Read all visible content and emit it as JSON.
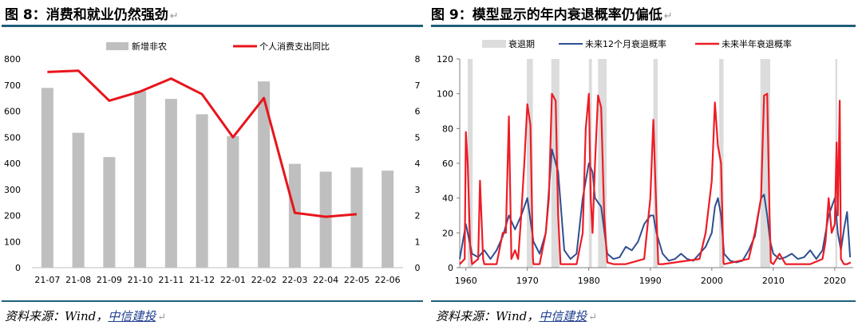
{
  "left": {
    "title": "图 8：消费和就业仍然强劲",
    "source_prefix": "资料来源：Wind，",
    "source_brand": "中信建投",
    "return_mark": "↵",
    "colors": {
      "bars": "#bfbfbf",
      "line": "#e8141b",
      "rule": "#1f5f7a"
    },
    "chart_data": {
      "type": "bar",
      "categories": [
        "21-07",
        "21-08",
        "21-09",
        "21-10",
        "21-11",
        "21-12",
        "22-01",
        "22-02",
        "22-03",
        "22-04",
        "22-05",
        "22-06"
      ],
      "series": [
        {
          "name": "新增非农",
          "type": "bar",
          "axis": "left",
          "values": [
            689,
            517,
            424,
            677,
            647,
            588,
            504,
            714,
            398,
            368,
            384,
            372
          ]
        },
        {
          "name": "个人消费支出同比",
          "type": "line",
          "axis": "right",
          "values": [
            7.5,
            7.55,
            6.4,
            6.75,
            7.25,
            6.65,
            5.0,
            6.5,
            2.1,
            1.95,
            2.05,
            null
          ]
        }
      ],
      "ylim_left": [
        0,
        800
      ],
      "yticks_left": [
        0,
        100,
        200,
        300,
        400,
        500,
        600,
        700,
        800
      ],
      "ylim_right": [
        0,
        8
      ],
      "yticks_right": [
        0,
        1,
        2,
        3,
        4,
        5,
        6,
        7,
        8
      ],
      "legend_position": "top",
      "grid": false
    }
  },
  "right": {
    "title": "图 9：模型显示的年内衰退概率仍偏低",
    "source_prefix": "资料来源：Wind，",
    "source_brand": "中信建投",
    "return_mark": "↵",
    "colors": {
      "recession": "#dcdcdc",
      "p12": "#2e4f8f",
      "p6": "#ee1c25",
      "rule": "#1f5f7a"
    },
    "chart_data": {
      "type": "line",
      "series_names": {
        "recession": "衰退期",
        "p12": "未来12个月衰退概率",
        "p6": "未来半年衰退概率"
      },
      "recessions": [
        [
          1960.3,
          1961.1
        ],
        [
          1969.9,
          1970.9
        ],
        [
          1973.9,
          1975.2
        ],
        [
          1980.0,
          1980.5
        ],
        [
          1981.5,
          1982.9
        ],
        [
          1990.5,
          1991.2
        ],
        [
          2001.2,
          2001.9
        ],
        [
          2007.9,
          2009.5
        ],
        [
          2020.1,
          2020.4
        ]
      ],
      "series": [
        {
          "key": "p12",
          "name": "未来12个月衰退概率",
          "points": [
            [
              1959,
              5
            ],
            [
              1960,
              25
            ],
            [
              1961,
              8
            ],
            [
              1962,
              6
            ],
            [
              1963,
              10
            ],
            [
              1964,
              5
            ],
            [
              1965,
              10
            ],
            [
              1966,
              18
            ],
            [
              1967,
              30
            ],
            [
              1968,
              22
            ],
            [
              1969,
              30
            ],
            [
              1970,
              40
            ],
            [
              1971,
              15
            ],
            [
              1972,
              8
            ],
            [
              1973,
              20
            ],
            [
              1974,
              68
            ],
            [
              1975,
              55
            ],
            [
              1976,
              10
            ],
            [
              1977,
              5
            ],
            [
              1978,
              8
            ],
            [
              1979,
              40
            ],
            [
              1980,
              60
            ],
            [
              1980.6,
              55
            ],
            [
              1981,
              40
            ],
            [
              1982,
              35
            ],
            [
              1983,
              8
            ],
            [
              1984,
              5
            ],
            [
              1985,
              6
            ],
            [
              1986,
              12
            ],
            [
              1987,
              10
            ],
            [
              1988,
              15
            ],
            [
              1989,
              25
            ],
            [
              1990,
              30
            ],
            [
              1990.5,
              30
            ],
            [
              1991,
              20
            ],
            [
              1992,
              8
            ],
            [
              1993,
              4
            ],
            [
              1994,
              5
            ],
            [
              1995,
              8
            ],
            [
              1996,
              5
            ],
            [
              1997,
              4
            ],
            [
              1998,
              8
            ],
            [
              1999,
              12
            ],
            [
              2000,
              20
            ],
            [
              2000.5,
              35
            ],
            [
              2001,
              40
            ],
            [
              2001.5,
              30
            ],
            [
              2002,
              8
            ],
            [
              2003,
              4
            ],
            [
              2004,
              3
            ],
            [
              2005,
              4
            ],
            [
              2006,
              10
            ],
            [
              2007,
              18
            ],
            [
              2008,
              40
            ],
            [
              2008.5,
              42
            ],
            [
              2009,
              30
            ],
            [
              2009.5,
              15
            ],
            [
              2010,
              8
            ],
            [
              2011,
              5
            ],
            [
              2012,
              6
            ],
            [
              2013,
              8
            ],
            [
              2014,
              5
            ],
            [
              2015,
              6
            ],
            [
              2016,
              10
            ],
            [
              2017,
              5
            ],
            [
              2018,
              10
            ],
            [
              2019,
              30
            ],
            [
              2020,
              40
            ],
            [
              2020.5,
              20
            ],
            [
              2021,
              10
            ],
            [
              2021.5,
              22
            ],
            [
              2022,
              32
            ],
            [
              2022.5,
              6
            ]
          ]
        },
        {
          "key": "p6",
          "name": "未来半年衰退概率",
          "points": [
            [
              1959,
              2
            ],
            [
              1959.8,
              5
            ],
            [
              1960,
              78
            ],
            [
              1960.3,
              60
            ],
            [
              1960.7,
              12
            ],
            [
              1961,
              2
            ],
            [
              1962,
              5
            ],
            [
              1962.3,
              50
            ],
            [
              1962.8,
              5
            ],
            [
              1963,
              2
            ],
            [
              1965,
              2
            ],
            [
              1966,
              20
            ],
            [
              1966.5,
              20
            ],
            [
              1967,
              87
            ],
            [
              1967.4,
              5
            ],
            [
              1968,
              10
            ],
            [
              1968.5,
              5
            ],
            [
              1969,
              30
            ],
            [
              1969.5,
              60
            ],
            [
              1970,
              94
            ],
            [
              1970.5,
              82
            ],
            [
              1970.9,
              5
            ],
            [
              1971,
              2
            ],
            [
              1972,
              2
            ],
            [
              1973,
              20
            ],
            [
              1973.5,
              40
            ],
            [
              1974,
              100
            ],
            [
              1974.6,
              96
            ],
            [
              1975,
              30
            ],
            [
              1975.4,
              2
            ],
            [
              1976,
              2
            ],
            [
              1978,
              2
            ],
            [
              1979,
              20
            ],
            [
              1979.5,
              80
            ],
            [
              1980,
              100
            ],
            [
              1980.3,
              40
            ],
            [
              1980.6,
              20
            ],
            [
              1981,
              60
            ],
            [
              1981.5,
              99
            ],
            [
              1982,
              92
            ],
            [
              1982.5,
              30
            ],
            [
              1983,
              3
            ],
            [
              1984,
              2
            ],
            [
              1986,
              2
            ],
            [
              1989,
              5
            ],
            [
              1990,
              40
            ],
            [
              1990.5,
              85
            ],
            [
              1991,
              30
            ],
            [
              1991.3,
              2
            ],
            [
              1992,
              2
            ],
            [
              1998,
              5
            ],
            [
              1999,
              20
            ],
            [
              2000,
              50
            ],
            [
              2000.5,
              95
            ],
            [
              2001,
              70
            ],
            [
              2001.5,
              60
            ],
            [
              2001.9,
              3
            ],
            [
              2002,
              2
            ],
            [
              2006,
              5
            ],
            [
              2007,
              20
            ],
            [
              2008,
              40
            ],
            [
              2008.5,
              99
            ],
            [
              2009,
              100
            ],
            [
              2009.4,
              30
            ],
            [
              2009.6,
              3
            ],
            [
              2010,
              2
            ],
            [
              2011,
              8
            ],
            [
              2011.5,
              5
            ],
            [
              2012,
              2
            ],
            [
              2016,
              2
            ],
            [
              2018,
              5
            ],
            [
              2018.5,
              15
            ],
            [
              2019,
              40
            ],
            [
              2019.5,
              20
            ],
            [
              2020,
              25
            ],
            [
              2020.3,
              72
            ],
            [
              2020.5,
              30
            ],
            [
              2020.8,
              96
            ],
            [
              2021,
              5
            ],
            [
              2021.5,
              2
            ],
            [
              2022,
              2
            ],
            [
              2022.6,
              3
            ]
          ]
        }
      ],
      "xlim": [
        1959,
        2023
      ],
      "xticks": [
        1960,
        1970,
        1980,
        1990,
        2000,
        2010,
        2020
      ],
      "ylim": [
        0,
        120
      ],
      "yticks": [
        0,
        20,
        40,
        60,
        80,
        100,
        120
      ],
      "legend_position": "top",
      "grid": false
    }
  }
}
